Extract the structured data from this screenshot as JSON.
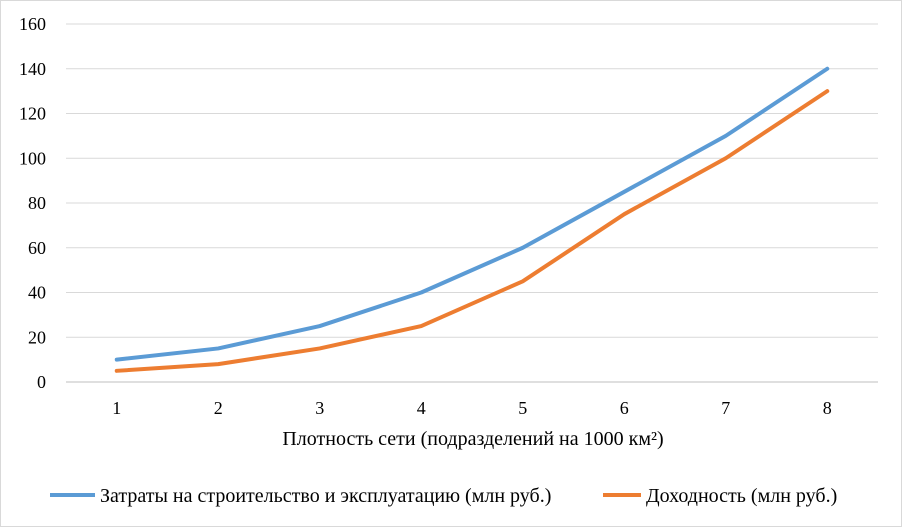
{
  "chart_data": {
    "type": "line",
    "categories": [
      "1",
      "2",
      "3",
      "4",
      "5",
      "6",
      "7",
      "8"
    ],
    "series": [
      {
        "name": "Затраты на строительство и эксплуатацию (млн руб.)",
        "values": [
          10,
          15,
          25,
          40,
          60,
          85,
          110,
          140
        ],
        "color": "#5b9bd5"
      },
      {
        "name": "Доходность (млн руб.)",
        "values": [
          5,
          8,
          15,
          25,
          45,
          75,
          100,
          130
        ],
        "color": "#ed7d31"
      }
    ],
    "title": "",
    "xlabel": "Плотность сети (подразделений на 1000 км²)",
    "ylabel": "",
    "ylim": [
      0,
      160
    ],
    "yticks": [
      "0",
      "20",
      "40",
      "60",
      "80",
      "100",
      "120",
      "140",
      "160"
    ],
    "grid": "horizontal",
    "legend": "bottom"
  }
}
